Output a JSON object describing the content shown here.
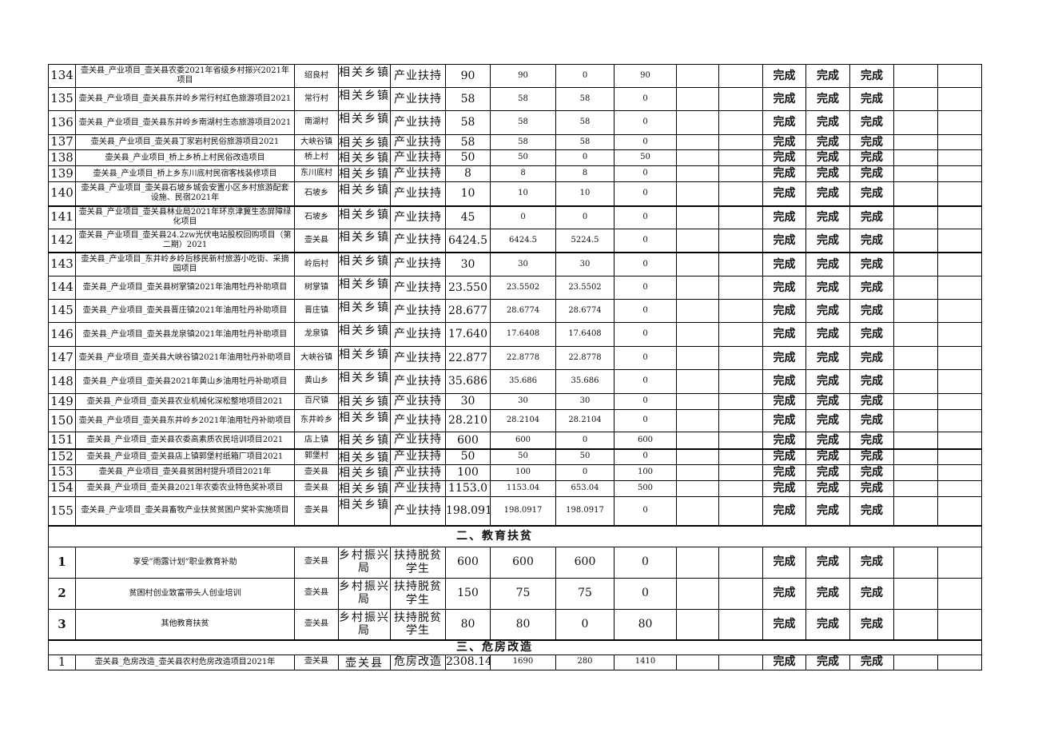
{
  "industry_rows": [
    {
      "no": "134",
      "name": "壶关县_产业项目_壶关县农委2021年省级乡村振兴2021年项目",
      "location": "绍良村",
      "dept": "相关乡镇",
      "type": "产业扶持",
      "total": "90",
      "a": "90",
      "b": "0",
      "c": "90",
      "s1": "完成",
      "s2": "完成",
      "s3": "完成"
    },
    {
      "no": "135",
      "name": "壶关县_产业项目_壶关县东井岭乡常行村红色旅游项目2021",
      "location": "常行村",
      "dept": "相关乡镇",
      "type": "产业扶持",
      "total": "58",
      "a": "58",
      "b": "58",
      "c": "0",
      "s1": "完成",
      "s2": "完成",
      "s3": "完成"
    },
    {
      "no": "136",
      "name": "壶关县_产业项目_壶关县东井岭乡南湖村生态旅游项目2021",
      "location": "南湖村",
      "dept": "相关乡镇",
      "type": "产业扶持",
      "total": "58",
      "a": "58",
      "b": "58",
      "c": "0",
      "s1": "完成",
      "s2": "完成",
      "s3": "完成"
    },
    {
      "no": "137",
      "name": "壶关县_产业项目_壶关县丁家岩村民俗旅游项目2021",
      "location": "大峡谷镇",
      "dept": "相关乡镇",
      "type": "产业扶持",
      "total": "58",
      "a": "58",
      "b": "58",
      "c": "0",
      "s1": "完成",
      "s2": "完成",
      "s3": "完成"
    },
    {
      "no": "138",
      "name": "壶关县_产业项目_桥上乡桥上村民俗改造项目",
      "location": "桥上村",
      "dept": "相关乡镇",
      "type": "产业扶持",
      "total": "50",
      "a": "50",
      "b": "0",
      "c": "50",
      "s1": "完成",
      "s2": "完成",
      "s3": "完成"
    },
    {
      "no": "139",
      "name": "壶关县_产业项目_桥上乡东川底村民宿客栈装修项目",
      "location": "东川底村",
      "dept": "相关乡镇",
      "type": "产业扶持",
      "total": "8",
      "a": "8",
      "b": "8",
      "c": "0",
      "s1": "完成",
      "s2": "完成",
      "s3": "完成"
    },
    {
      "no": "140",
      "name": "壶关县_产业项目_壶关县石坡乡城会安置小区乡村旅游配套设施、民宿2021年",
      "location": "石坡乡",
      "dept": "相关乡镇",
      "type": "产业扶持",
      "total": "10",
      "a": "10",
      "b": "10",
      "c": "0",
      "s1": "完成",
      "s2": "完成",
      "s3": "完成"
    },
    {
      "no": "141",
      "name": "壶关县_产业项目_壶关县林业局2021年环京津冀生态屏障绿化项目",
      "location": "石坡乡",
      "dept": "相关乡镇",
      "type": "产业扶持",
      "total": "45",
      "a": "0",
      "b": "0",
      "c": "0",
      "s1": "完成",
      "s2": "完成",
      "s3": "完成"
    },
    {
      "no": "142",
      "name": "壶关县_产业项目_壶关县24.2zw光伏电站股权回购项目（第二期）2021",
      "location": "壶关县",
      "dept": "相关乡镇",
      "type": "产业扶持",
      "total": "6424.5",
      "a": "6424.5",
      "b": "5224.5",
      "c": "0",
      "s1": "完成",
      "s2": "完成",
      "s3": "完成"
    },
    {
      "no": "143",
      "name": "壶关县_产业项目_东井岭乡岭后移民新村旅游小吃街、采摘园项目",
      "location": "岭后村",
      "dept": "相关乡镇",
      "type": "产业扶持",
      "total": "30",
      "a": "30",
      "b": "30",
      "c": "0",
      "s1": "完成",
      "s2": "完成",
      "s3": "完成"
    },
    {
      "no": "144",
      "name": "壶关县_产业项目_壶关县树掌镇2021年油用牡丹补助项目",
      "location": "树掌镇",
      "dept": "相关乡镇",
      "type": "产业扶持",
      "total": "23.550",
      "a": "23.5502",
      "b": "23.5502",
      "c": "0",
      "s1": "完成",
      "s2": "完成",
      "s3": "完成"
    },
    {
      "no": "145",
      "name": "壶关县_产业项目_壶关县晋庄镇2021年油用牡丹补助项目",
      "location": "晋庄镇",
      "dept": "相关乡镇",
      "type": "产业扶持",
      "total": "28.677",
      "a": "28.6774",
      "b": "28.6774",
      "c": "0",
      "s1": "完成",
      "s2": "完成",
      "s3": "完成"
    },
    {
      "no": "146",
      "name": "壶关县_产业项目_壶关县龙泉镇2021年油用牡丹补助项目",
      "location": "龙泉镇",
      "dept": "相关乡镇",
      "type": "产业扶持",
      "total": "17.640",
      "a": "17.6408",
      "b": "17.6408",
      "c": "0",
      "s1": "完成",
      "s2": "完成",
      "s3": "完成"
    },
    {
      "no": "147",
      "name": "壶关县_产业项目_壶关县大峡谷镇2021年油用牡丹补助项目",
      "location": "大峡谷镇",
      "dept": "相关乡镇",
      "type": "产业扶持",
      "total": "22.877",
      "a": "22.8778",
      "b": "22.8778",
      "c": "0",
      "s1": "完成",
      "s2": "完成",
      "s3": "完成"
    },
    {
      "no": "148",
      "name": "壶关县_产业项目_壶关县2021年黄山乡油用牡丹补助项目",
      "location": "黄山乡",
      "dept": "相关乡镇",
      "type": "产业扶持",
      "total": "35.686",
      "a": "35.686",
      "b": "35.686",
      "c": "0",
      "s1": "完成",
      "s2": "完成",
      "s3": "完成"
    },
    {
      "no": "149",
      "name": "壶关县_产业项目_壶关县农业机械化深松整地项目2021",
      "location": "百尺镇",
      "dept": "相关乡镇",
      "type": "产业扶持",
      "total": "30",
      "a": "30",
      "b": "30",
      "c": "0",
      "s1": "完成",
      "s2": "完成",
      "s3": "完成"
    },
    {
      "no": "150",
      "name": "壶关县_产业项目_壶关县东井岭乡2021年油用牡丹补助项目",
      "location": "东井岭乡",
      "dept": "相关乡镇",
      "type": "产业扶持",
      "total": "28.210",
      "a": "28.2104",
      "b": "28.2104",
      "c": "0",
      "s1": "完成",
      "s2": "完成",
      "s3": "完成"
    },
    {
      "no": "151",
      "name": "壶关县_产业项目_壶关县农委高素质农民培训项目2021",
      "location": "店上镇",
      "dept": "相关乡镇",
      "type": "产业扶持",
      "total": "600",
      "a": "600",
      "b": "0",
      "c": "600",
      "s1": "完成",
      "s2": "完成",
      "s3": "完成"
    },
    {
      "no": "152",
      "name": "壶关县_产业项目_壶关县店上镇郭堡村纸箱厂项目2021",
      "location": "郭堡村",
      "dept": "相关乡镇",
      "type": "产业扶持",
      "total": "50",
      "a": "50",
      "b": "50",
      "c": "0",
      "s1": "完成",
      "s2": "完成",
      "s3": "完成"
    },
    {
      "no": "153",
      "name": "壶关县_产业项目_壶关县贫困村提升项目2021年",
      "location": "壶关县",
      "dept": "相关乡镇",
      "type": "产业扶持",
      "total": "100",
      "a": "100",
      "b": "0",
      "c": "100",
      "s1": "完成",
      "s2": "完成",
      "s3": "完成"
    },
    {
      "no": "154",
      "name": "壶关县_产业项目_壶关县2021年农委农业特色奖补项目",
      "location": "壶关县",
      "dept": "相关乡镇",
      "type": "产业扶持",
      "total": "1153.0",
      "a": "1153.04",
      "b": "653.04",
      "c": "500",
      "s1": "完成",
      "s2": "完成",
      "s3": "完成"
    },
    {
      "no": "155",
      "name": "壶关县_产业项目_壶关县畜牧产业扶贫贫困户奖补实施项目",
      "location": "壶关县",
      "dept": "相关乡镇",
      "type": "产业扶持",
      "total": "198.0917",
      "a": "198.0917",
      "b": "198.0917",
      "c": "0",
      "s1": "完成",
      "s2": "完成",
      "s3": "完成"
    }
  ],
  "education_section": {
    "title": "二、教育扶贫"
  },
  "education_rows": [
    {
      "no": "1",
      "name": "享受”雨露计划”职业教育补助",
      "location": "壶关县",
      "dept": "乡村振兴局",
      "type": "扶持脱贫学生",
      "total": "600",
      "a": "600",
      "b": "600",
      "c": "0",
      "s1": "完成",
      "s2": "完成",
      "s3": "完成"
    },
    {
      "no": "2",
      "name": "贫困村创业致富带头人创业培训",
      "location": "壶关县",
      "dept": "乡村振兴局",
      "type": "扶持脱贫学生",
      "total": "150",
      "a": "75",
      "b": "75",
      "c": "0",
      "s1": "完成",
      "s2": "完成",
      "s3": "完成"
    },
    {
      "no": "3",
      "name": "其他教育扶贫",
      "location": "壶关县",
      "dept": "乡村振兴局",
      "type": "扶持脱贫学生",
      "total": "80",
      "a": "80",
      "b": "0",
      "c": "80",
      "s1": "完成",
      "s2": "完成",
      "s3": "完成"
    }
  ],
  "housing_section": {
    "title": "三、危房改造"
  },
  "housing_rows": [
    {
      "no": "1",
      "name": "壶关县_危房改造_壶关县农村危房改造项目2021年",
      "location": "壶关县",
      "dept": "壶关县",
      "type": "危房改造",
      "total": "2308.1416",
      "a": "1690",
      "b": "280",
      "c": "1410",
      "s1": "完成",
      "s2": "完成",
      "s3": "完成"
    }
  ]
}
